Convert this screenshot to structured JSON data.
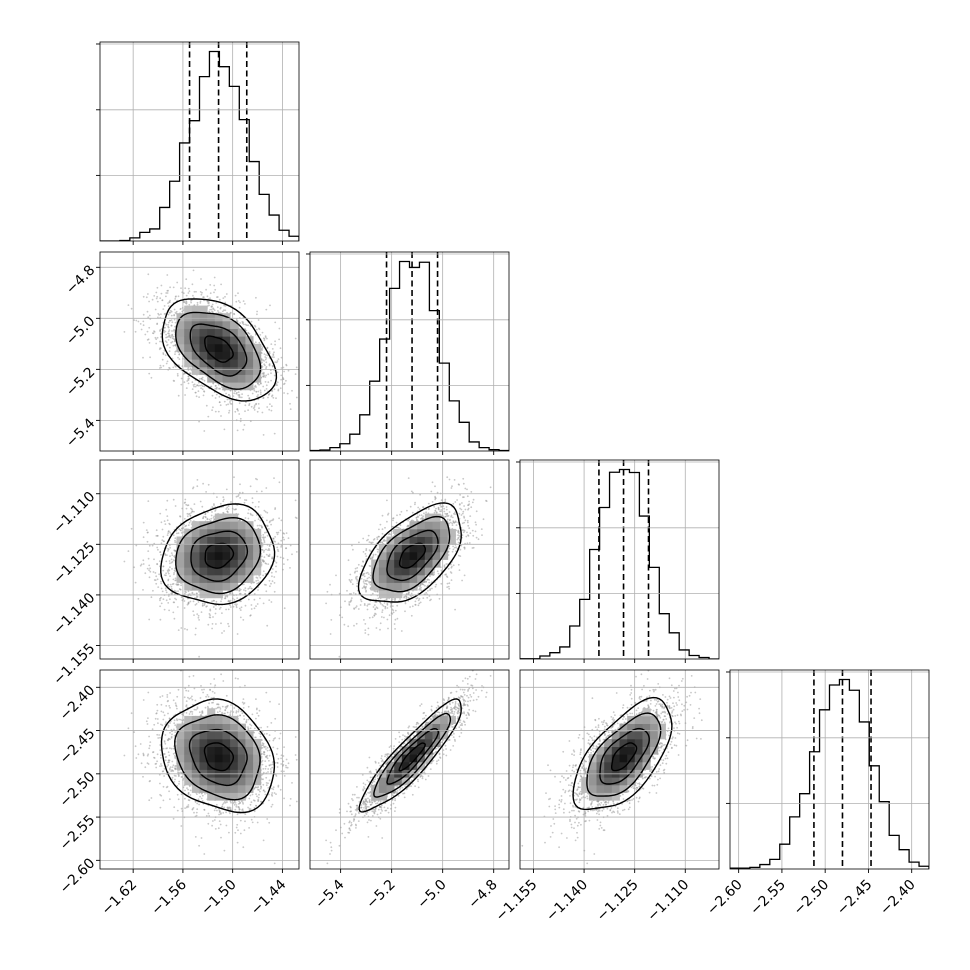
{
  "chart_data": {
    "type": "corner",
    "grid": true,
    "colors": {
      "marks": "#000000",
      "points": "#9a9a9a",
      "grid": "#b0b0b0",
      "background": "#ffffff"
    },
    "parameters": [
      {
        "range": [
          -1.66,
          -1.42
        ],
        "ticks": [
          -1.62,
          -1.56,
          -1.5,
          -1.44
        ],
        "tick_labels": [
          "−1.62",
          "−1.56",
          "−1.50",
          "−1.44"
        ],
        "quantiles": [
          -1.552,
          -1.517,
          -1.483
        ],
        "mean": -1.517,
        "sd": 0.034
      },
      {
        "range": [
          -5.52,
          -4.74
        ],
        "ticks": [
          -5.4,
          -5.2,
          -5.0,
          -4.8
        ],
        "tick_labels": [
          "−5.4",
          "−5.2",
          "−5.0",
          "−4.8"
        ],
        "quantiles": [
          -5.22,
          -5.12,
          -5.02
        ],
        "mean": -5.12,
        "sd": 0.1
      },
      {
        "range": [
          -1.159,
          -1.1
        ],
        "ticks": [
          -1.155,
          -1.14,
          -1.125,
          -1.11
        ],
        "tick_labels": [
          "−1.155",
          "−1.140",
          "−1.125",
          "−1.110"
        ],
        "quantiles": [
          -1.1356,
          -1.1283,
          -1.1209
        ],
        "mean": -1.1283,
        "sd": 0.0073
      },
      {
        "range": [
          -2.61,
          -2.38
        ],
        "ticks": [
          -2.6,
          -2.55,
          -2.5,
          -2.45,
          -2.4
        ],
        "tick_labels": [
          "−2.60",
          "−2.55",
          "−2.50",
          "−2.45",
          "−2.40"
        ],
        "quantiles": [
          -2.513,
          -2.48,
          -2.447
        ],
        "mean": -2.48,
        "sd": 0.032
      }
    ],
    "correlations": [
      {
        "i": 1,
        "j": 0,
        "rho": -0.45
      },
      {
        "i": 2,
        "j": 0,
        "rho": 0.15
      },
      {
        "i": 2,
        "j": 1,
        "rho": 0.55
      },
      {
        "i": 3,
        "j": 0,
        "rho": -0.2
      },
      {
        "i": 3,
        "j": 1,
        "rho": 0.9
      },
      {
        "i": 3,
        "j": 2,
        "rho": 0.62
      }
    ],
    "histogram_bins": 20,
    "contour_levels_sigma": [
      0.5,
      1.0,
      1.5,
      2.0
    ]
  }
}
